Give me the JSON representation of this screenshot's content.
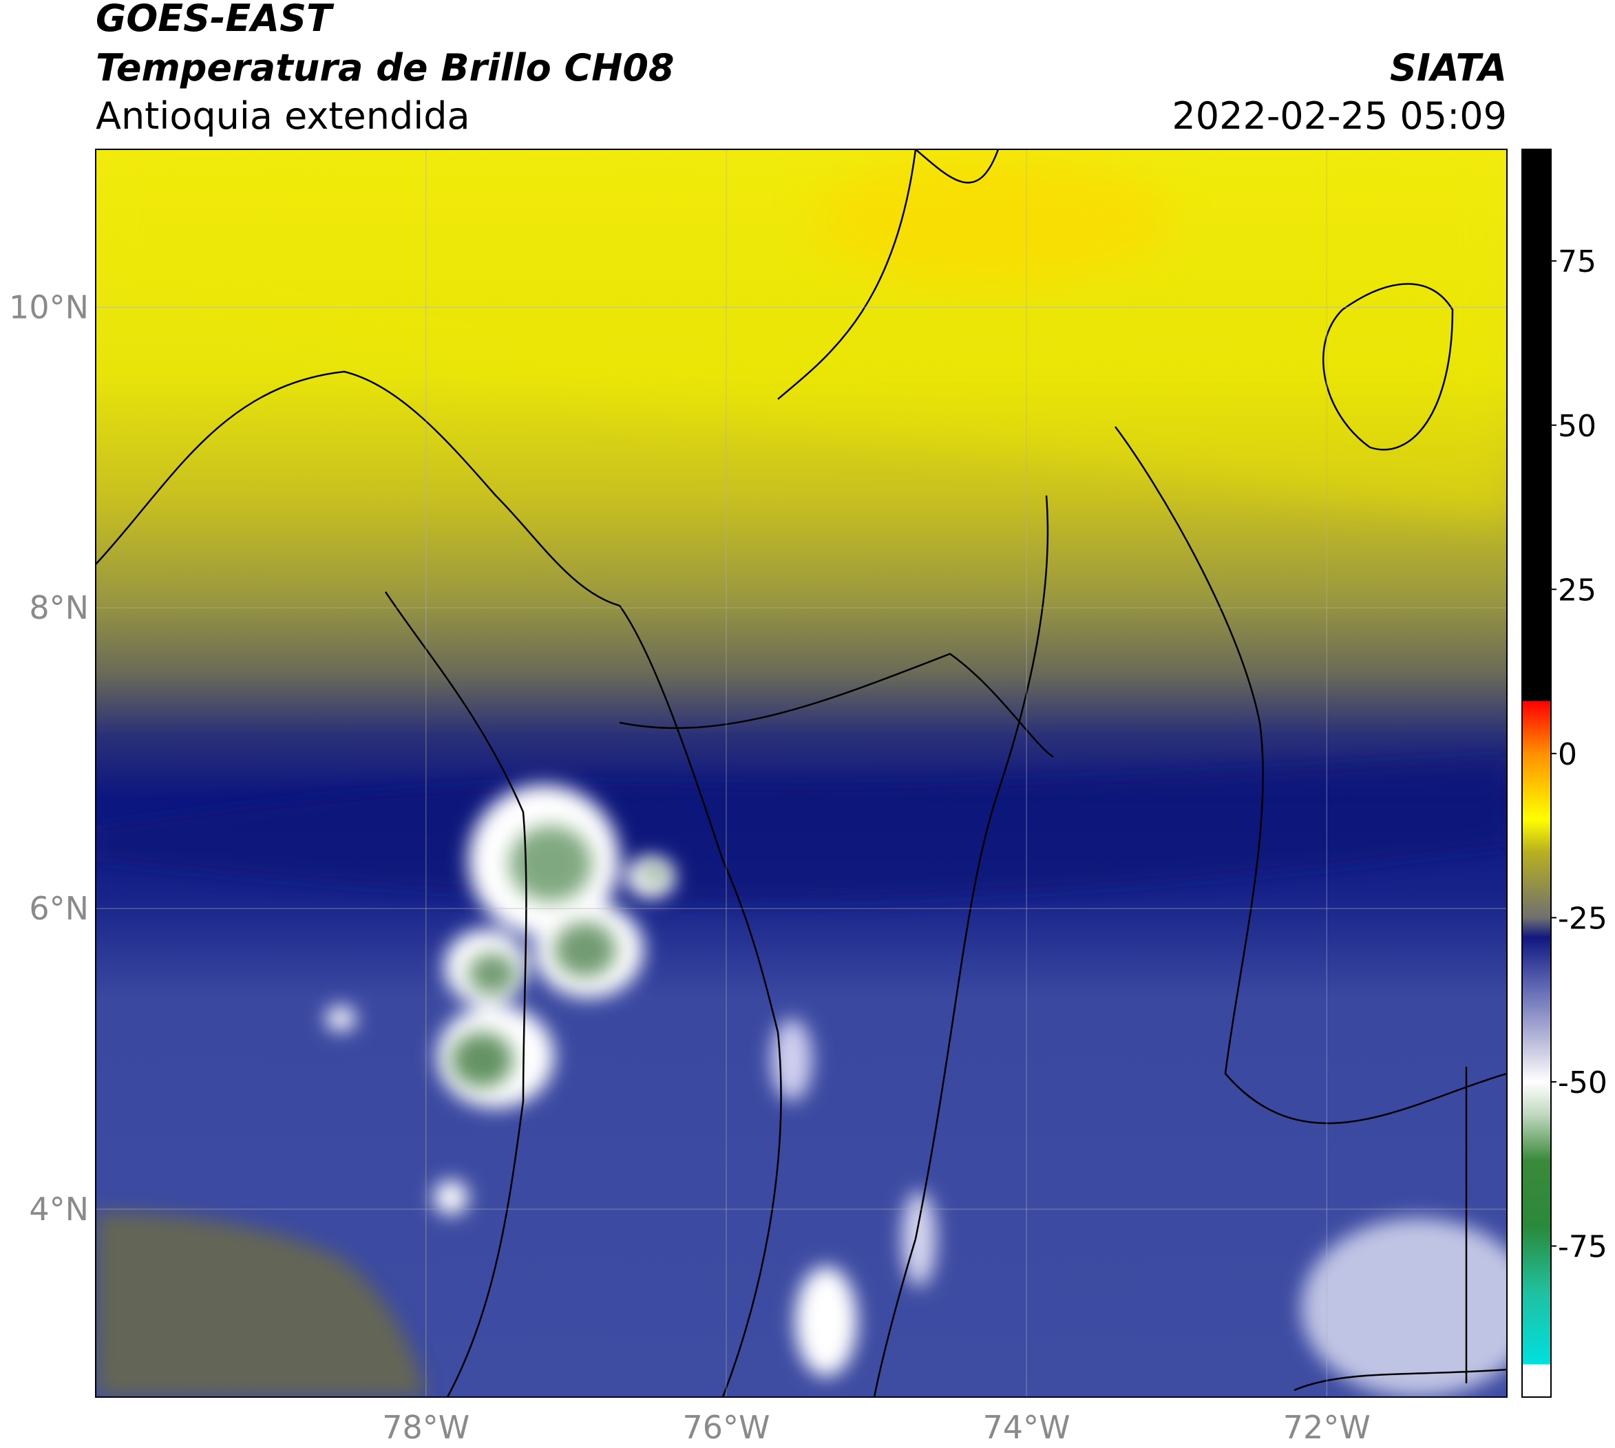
{
  "header": {
    "title": "GOES-EAST",
    "subtitle": "Temperatura de Brillo CH08",
    "region": "Antioquia extendida",
    "source": "SIATA",
    "datetime": "2022-02-25 05:09"
  },
  "map": {
    "xlim": [
      -80.2,
      -70.8
    ],
    "ylim": [
      2.75,
      11.05
    ],
    "xticks": [
      {
        "value": -78,
        "label": "78°W"
      },
      {
        "value": -76,
        "label": "76°W"
      },
      {
        "value": -74,
        "label": "74°W"
      },
      {
        "value": -72,
        "label": "72°W"
      }
    ],
    "yticks": [
      {
        "value": 4,
        "label": "4°N"
      },
      {
        "value": 6,
        "label": "6°N"
      },
      {
        "value": 8,
        "label": "8°N"
      },
      {
        "value": 10,
        "label": "10°N"
      }
    ],
    "grid": true
  },
  "colorbar": {
    "lim": [
      -98,
      92
    ],
    "ticks": [
      -75,
      -50,
      -25,
      0,
      25,
      50,
      75
    ],
    "stops": [
      {
        "value": -98,
        "color": "#ffffff"
      },
      {
        "value": -93,
        "color": "#ffffff"
      },
      {
        "value": -93,
        "color": "#00e0e0"
      },
      {
        "value": -82,
        "color": "#20c0a0"
      },
      {
        "value": -72,
        "color": "#2a8a3a"
      },
      {
        "value": -62,
        "color": "#3a8a3a"
      },
      {
        "value": -55,
        "color": "#c0d8c0"
      },
      {
        "value": -50,
        "color": "#ffffff"
      },
      {
        "value": -45,
        "color": "#c8c8e0"
      },
      {
        "value": -35,
        "color": "#5a62b0"
      },
      {
        "value": -28,
        "color": "#101880"
      },
      {
        "value": -25,
        "color": "#707070"
      },
      {
        "value": -15,
        "color": "#b8b020"
      },
      {
        "value": -10,
        "color": "#ffff00"
      },
      {
        "value": 0,
        "color": "#ff9000"
      },
      {
        "value": 8,
        "color": "#ff0000"
      },
      {
        "value": 8,
        "color": "#000000"
      },
      {
        "value": 92,
        "color": "#000000"
      }
    ]
  }
}
